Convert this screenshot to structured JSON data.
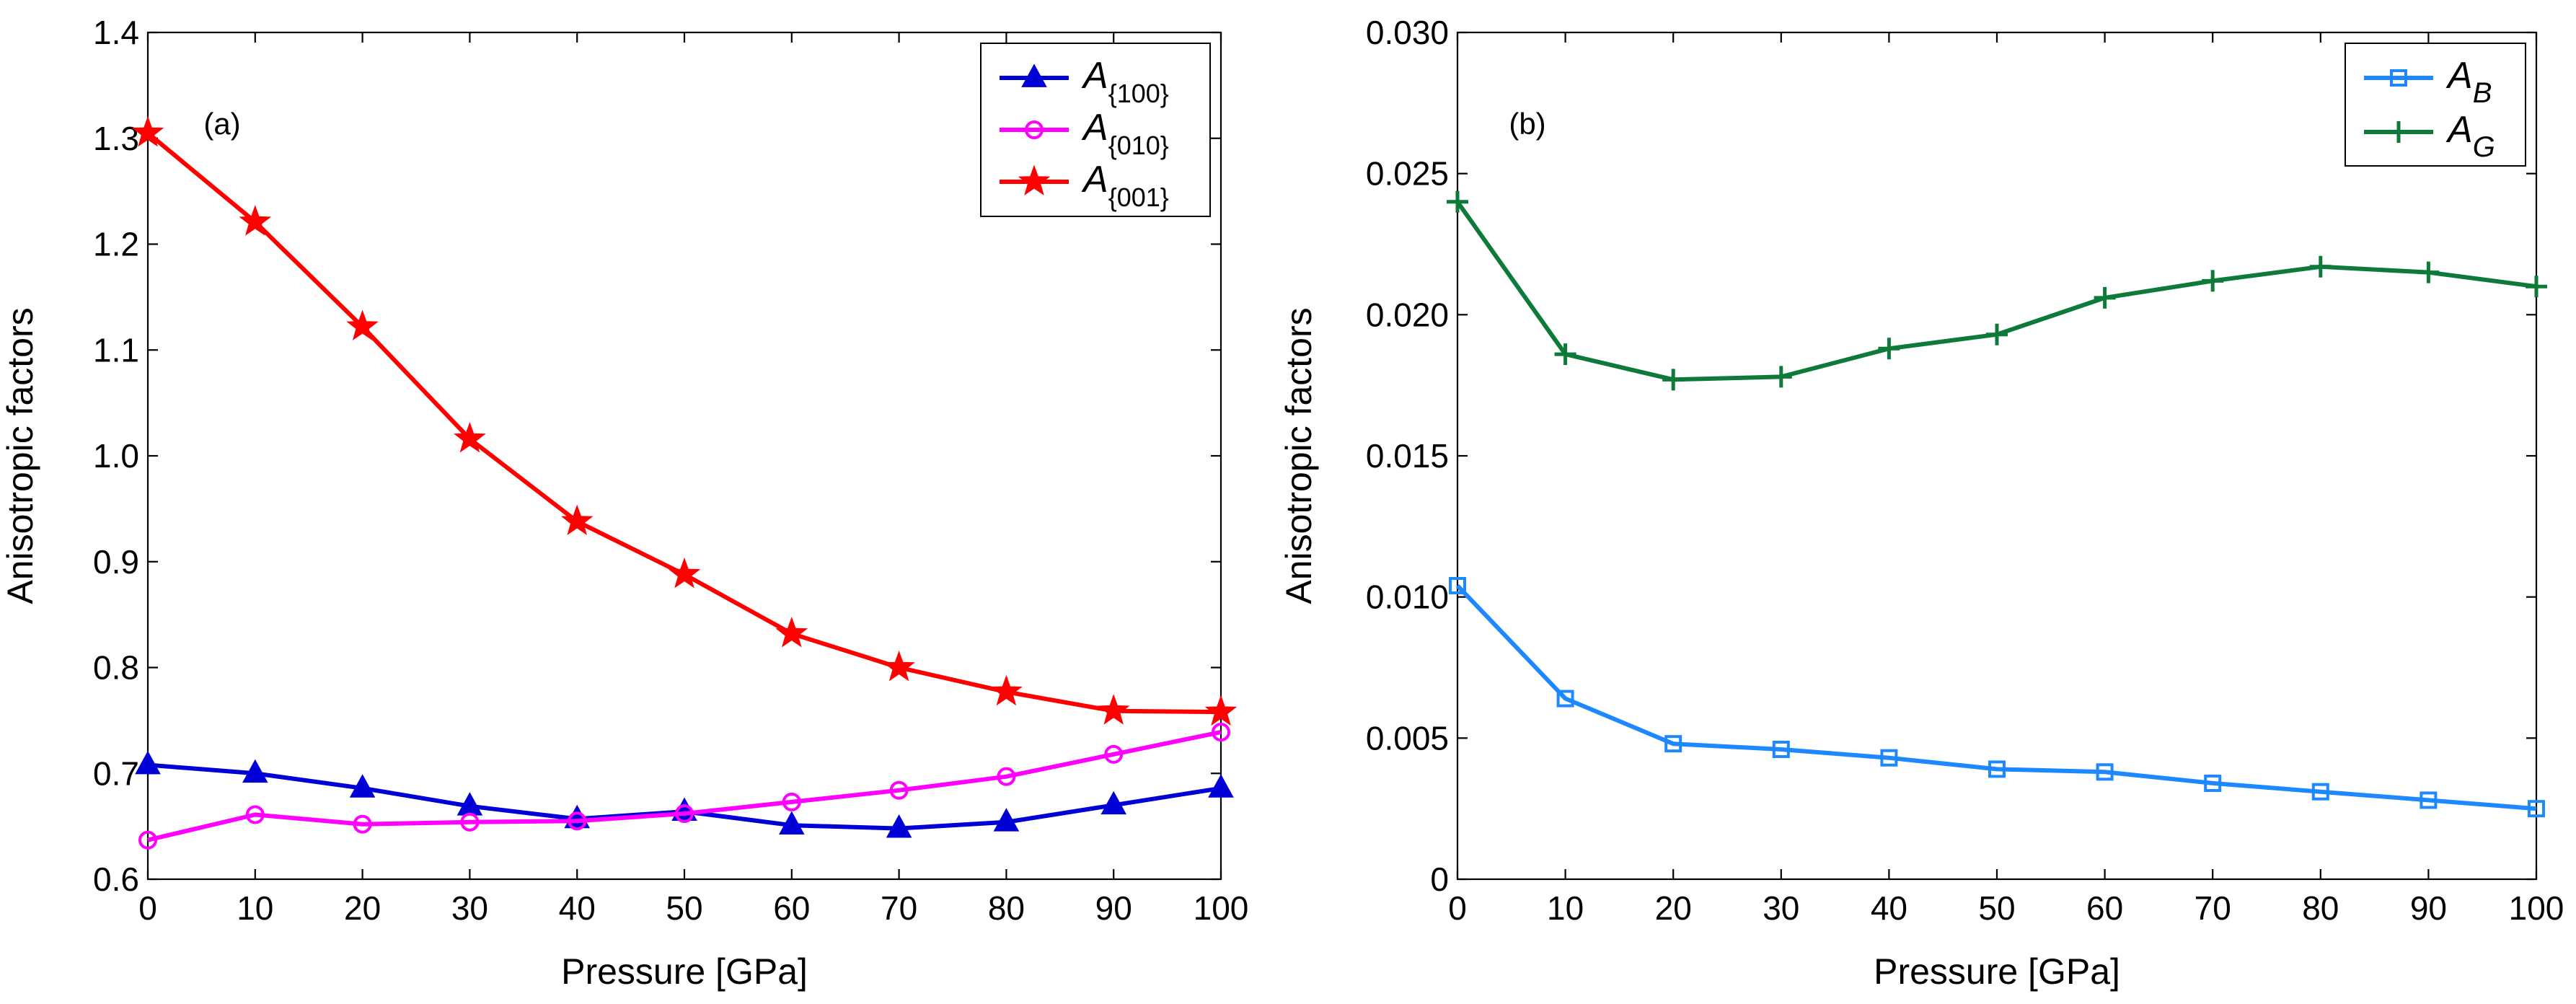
{
  "chart_data": [
    {
      "panel": "(a)",
      "type": "line",
      "ylabel": "Anisotropic factors",
      "xlabel": "Pressure [GPa]",
      "x": [
        0,
        10,
        20,
        30,
        40,
        50,
        60,
        70,
        80,
        90,
        100
      ],
      "xlim": [
        0,
        100
      ],
      "ylim": [
        0.6,
        1.4
      ],
      "xticks": [
        "0",
        "10",
        "20",
        "30",
        "40",
        "50",
        "60",
        "70",
        "80",
        "90",
        "100"
      ],
      "yticks": [
        "0.6",
        "0.7",
        "0.8",
        "0.9",
        "1.0",
        "1.1",
        "1.2",
        "1.3",
        "1.4"
      ],
      "legend_position": "top-right",
      "series": [
        {
          "name": "A",
          "sub": "{100}",
          "color": "#0000d6",
          "marker": "triangle",
          "values": [
            0.708,
            0.7,
            0.686,
            0.669,
            0.657,
            0.664,
            0.651,
            0.648,
            0.654,
            0.67,
            0.686
          ]
        },
        {
          "name": "A",
          "sub": "{010}",
          "color": "#ff00ff",
          "marker": "circle",
          "values": [
            0.637,
            0.661,
            0.652,
            0.654,
            0.655,
            0.662,
            0.673,
            0.684,
            0.697,
            0.718,
            0.739
          ]
        },
        {
          "name": "A",
          "sub": "{001}",
          "color": "#ff0000",
          "marker": "star",
          "values": [
            1.305,
            1.221,
            1.122,
            1.016,
            0.938,
            0.888,
            0.832,
            0.8,
            0.777,
            0.759,
            0.758
          ]
        }
      ]
    },
    {
      "panel": "(b)",
      "type": "line",
      "ylabel": "Anisotropic factors",
      "xlabel": "Pressure [GPa]",
      "x": [
        0,
        10,
        20,
        30,
        40,
        50,
        60,
        70,
        80,
        90,
        100
      ],
      "xlim": [
        0,
        100
      ],
      "ylim": [
        0,
        0.03
      ],
      "xticks": [
        "0",
        "10",
        "20",
        "30",
        "40",
        "50",
        "60",
        "70",
        "80",
        "90",
        "100"
      ],
      "yticks": [
        "0",
        "0.005",
        "0.010",
        "0.015",
        "0.020",
        "0.025",
        "0.030"
      ],
      "legend_position": "top-right",
      "series": [
        {
          "name": "A",
          "sub": "B",
          "color": "#1e88ff",
          "marker": "square",
          "values": [
            0.0104,
            0.0064,
            0.0048,
            0.0046,
            0.0043,
            0.0039,
            0.0038,
            0.0034,
            0.0031,
            0.0028,
            0.0025
          ]
        },
        {
          "name": "A",
          "sub": "G",
          "color": "#0e7a3a",
          "marker": "plus",
          "values": [
            0.024,
            0.0186,
            0.0177,
            0.0178,
            0.0188,
            0.0193,
            0.0206,
            0.0212,
            0.0217,
            0.0215,
            0.021
          ]
        }
      ]
    }
  ]
}
